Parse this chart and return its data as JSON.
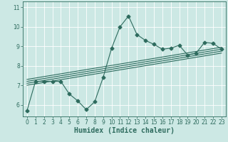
{
  "title": "",
  "xlabel": "Humidex (Indice chaleur)",
  "ylabel": "",
  "bg_color": "#cce8e4",
  "line_color": "#2e6b5e",
  "grid_color": "#ffffff",
  "x_data": [
    0,
    1,
    2,
    3,
    4,
    5,
    6,
    7,
    8,
    9,
    10,
    11,
    12,
    13,
    14,
    15,
    16,
    17,
    18,
    19,
    20,
    21,
    22,
    23
  ],
  "y_main": [
    5.7,
    7.2,
    7.2,
    7.2,
    7.2,
    6.55,
    6.2,
    5.75,
    6.15,
    7.4,
    8.9,
    10.0,
    10.55,
    9.6,
    9.3,
    9.1,
    8.85,
    8.9,
    9.05,
    8.55,
    8.65,
    9.2,
    9.15,
    8.85
  ],
  "regression_lines": [
    {
      "x": [
        0,
        23
      ],
      "y": [
        7.0,
        8.65
      ]
    },
    {
      "x": [
        0,
        23
      ],
      "y": [
        7.1,
        8.75
      ]
    },
    {
      "x": [
        0,
        23
      ],
      "y": [
        7.2,
        8.85
      ]
    },
    {
      "x": [
        0,
        23
      ],
      "y": [
        7.3,
        8.95
      ]
    }
  ],
  "xlim": [
    -0.5,
    23.5
  ],
  "ylim": [
    5.4,
    11.3
  ],
  "yticks": [
    6,
    7,
    8,
    9,
    10,
    11
  ],
  "xticks": [
    0,
    1,
    2,
    3,
    4,
    5,
    6,
    7,
    8,
    9,
    10,
    11,
    12,
    13,
    14,
    15,
    16,
    17,
    18,
    19,
    20,
    21,
    22,
    23
  ],
  "tick_fontsize": 5.5,
  "xlabel_fontsize": 7.0,
  "marker": "D",
  "markersize": 2.5
}
